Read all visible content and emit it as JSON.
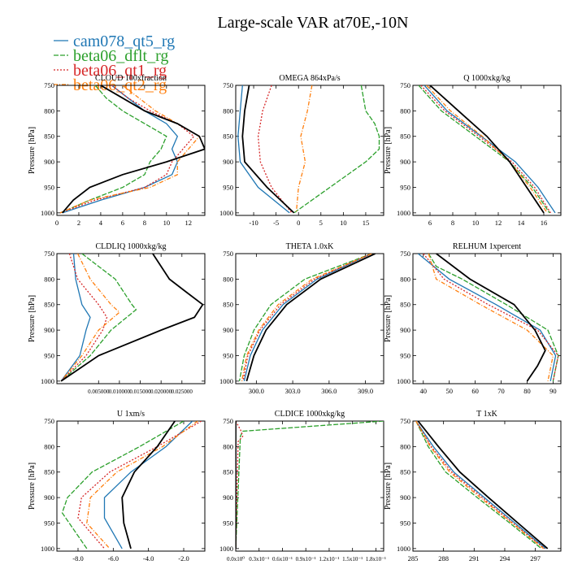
{
  "figure": {
    "title": "Large-scale VAR at70E,-10N",
    "legend": [
      {
        "name": "cam078_qt5_rg",
        "color": "#1f77b4"
      },
      {
        "name": "beta06_dflt_rg",
        "color": "#2ca02c"
      },
      {
        "name": "beta06_qt1_rg",
        "color": "#d62728"
      },
      {
        "name": "beta06_qt2_rg",
        "color": "#ff7f0e"
      },
      {
        "name": "",
        "color": "#000000"
      }
    ]
  },
  "chart_data": [
    {
      "type": "line",
      "title": "CLOUD 100xfraction",
      "ylabel": "Pressure [hPa]",
      "xlim": [
        0,
        13.5
      ],
      "ylim": [
        1005,
        750
      ],
      "xticks": [
        0,
        2,
        4,
        6,
        8,
        10,
        12
      ],
      "xticklabels": [
        "0",
        "2",
        "4",
        "6",
        "8",
        "10",
        "12"
      ],
      "yticks": [
        750,
        800,
        850,
        900,
        950,
        1000
      ],
      "yticklabels": [
        "750",
        "800",
        "850",
        "900",
        "950",
        "1000"
      ],
      "series": [
        {
          "p": [
            750,
            775,
            800,
            825,
            850,
            875,
            900,
            925,
            950,
            975,
            1000
          ],
          "x": [
            5,
            6.5,
            8,
            10,
            11,
            10.5,
            11,
            10.5,
            8,
            4,
            0.5
          ]
        },
        {
          "p": [
            750,
            775,
            800,
            825,
            850,
            875,
            900,
            925,
            950,
            975,
            1000
          ],
          "x": [
            3.5,
            4.5,
            6,
            8,
            10,
            9.5,
            8.5,
            8,
            6,
            3,
            0.3
          ]
        },
        {
          "p": [
            750,
            775,
            800,
            825,
            850,
            875,
            900,
            925,
            950,
            975,
            1000
          ],
          "x": [
            5,
            6.5,
            8.5,
            11,
            12.5,
            11.5,
            10.5,
            10,
            8,
            3.5,
            0.3
          ]
        },
        {
          "p": [
            750,
            775,
            800,
            825,
            850,
            875,
            900,
            925,
            950,
            975,
            1000
          ],
          "x": [
            6,
            7.5,
            9,
            11,
            13,
            12,
            11,
            11,
            8.5,
            3,
            0.3
          ]
        },
        {
          "p": [
            750,
            775,
            800,
            825,
            850,
            875,
            900,
            925,
            950,
            975,
            1000
          ],
          "x": [
            4,
            6,
            8,
            11,
            13,
            13.5,
            10,
            6,
            3,
            1.5,
            0.5
          ]
        }
      ]
    },
    {
      "type": "line",
      "title": "OMEGA  864xPa/s",
      "ylabel": "",
      "xlim": [
        -14,
        19
      ],
      "ylim": [
        1005,
        750
      ],
      "xticks": [
        -10,
        -5,
        0,
        5,
        10,
        15
      ],
      "xticklabels": [
        "-10",
        "-5",
        "0",
        "5",
        "10",
        "15"
      ],
      "yticks": [
        750,
        800,
        850,
        900,
        950,
        1000
      ],
      "yticklabels": [
        "750",
        "800",
        "850",
        "900",
        "950",
        "1000"
      ],
      "series": [
        {
          "p": [
            750,
            800,
            850,
            900,
            950,
            1000
          ],
          "x": [
            -12.5,
            -13,
            -13.5,
            -13,
            -9,
            -2
          ]
        },
        {
          "p": [
            750,
            800,
            825,
            850,
            875,
            900,
            950,
            1000
          ],
          "x": [
            14,
            15,
            17,
            18,
            18,
            15,
            7,
            -1
          ]
        },
        {
          "p": [
            750,
            800,
            850,
            900,
            950,
            1000
          ],
          "x": [
            -6,
            -8,
            -9,
            -8.5,
            -6,
            -1.5
          ]
        },
        {
          "p": [
            750,
            800,
            850,
            900,
            950,
            1000
          ],
          "x": [
            3,
            2,
            0.5,
            1.5,
            0,
            -0.5
          ]
        },
        {
          "p": [
            750,
            800,
            850,
            900,
            950,
            1000
          ],
          "x": [
            -11,
            -12,
            -12.5,
            -12,
            -7,
            -1
          ]
        }
      ]
    },
    {
      "type": "line",
      "title": "Q  1000xkg/kg",
      "ylabel": "Pressure [hPa]",
      "xlim": [
        4.5,
        17.5
      ],
      "ylim": [
        1005,
        750
      ],
      "xticks": [
        6,
        8,
        10,
        12,
        14,
        16
      ],
      "xticklabels": [
        "6",
        "8",
        "10",
        "12",
        "14",
        "16"
      ],
      "yticks": [
        750,
        800,
        850,
        900,
        950,
        1000
      ],
      "yticklabels": [
        "750",
        "800",
        "850",
        "900",
        "950",
        "1000"
      ],
      "series": [
        {
          "p": [
            750,
            800,
            850,
            900,
            950,
            1000
          ],
          "x": [
            5.5,
            7.5,
            10.5,
            13.5,
            15.5,
            17
          ]
        },
        {
          "p": [
            750,
            800,
            850,
            900,
            950,
            1000
          ],
          "x": [
            5,
            7,
            10,
            13,
            15,
            16.5
          ]
        },
        {
          "p": [
            750,
            800,
            850,
            900,
            950,
            1000
          ],
          "x": [
            5.2,
            7.3,
            10.3,
            13.2,
            15.2,
            16.6
          ]
        },
        {
          "p": [
            750,
            800,
            850,
            900,
            950,
            1000
          ],
          "x": [
            5.7,
            7.8,
            10.6,
            13,
            14.8,
            16.3
          ]
        },
        {
          "p": [
            750,
            800,
            850,
            900,
            950,
            1000
          ],
          "x": [
            6,
            8.5,
            11,
            13,
            14.5,
            16
          ]
        }
      ]
    },
    {
      "type": "line",
      "title": "CLDLIQ  1000xkg/kg",
      "ylabel": "Pressure [hPa]",
      "xlim": [
        -0.005,
        0.0305
      ],
      "ylim": [
        1005,
        750
      ],
      "xticks": [
        0.005,
        0.01,
        0.015,
        0.02,
        0.025
      ],
      "xticklabels": [
        "0.005000",
        "0.010000",
        "0.015000",
        "0.020000",
        "0.025000"
      ],
      "yticks": [
        750,
        800,
        850,
        900,
        950,
        1000
      ],
      "yticklabels": [
        "750",
        "800",
        "850",
        "900",
        "950",
        "1000"
      ],
      "series": [
        {
          "p": [
            750,
            800,
            850,
            875,
            900,
            950,
            1000
          ],
          "x": [
            -0.001,
            -0.0005,
            0.001,
            0.003,
            0.002,
            0.0005,
            -0.004
          ]
        },
        {
          "p": [
            750,
            800,
            850,
            860,
            900,
            950,
            1000
          ],
          "x": [
            0.001,
            0.009,
            0.013,
            0.014,
            0.008,
            0.003,
            -0.004
          ]
        },
        {
          "p": [
            750,
            800,
            850,
            875,
            900,
            950,
            1000
          ],
          "x": [
            -0.002,
            0.0,
            0.005,
            0.007,
            0.006,
            0.002,
            -0.004
          ]
        },
        {
          "p": [
            750,
            800,
            850,
            865,
            900,
            950,
            1000
          ],
          "x": [
            0.0,
            0.003,
            0.008,
            0.01,
            0.005,
            0.001,
            -0.004
          ]
        },
        {
          "p": [
            750,
            800,
            825,
            850,
            875,
            900,
            950,
            1000
          ],
          "x": [
            0.018,
            0.022,
            0.026,
            0.03,
            0.028,
            0.02,
            0.005,
            -0.004
          ]
        }
      ]
    },
    {
      "type": "line",
      "title": "THETA  1.0xK",
      "ylabel": "",
      "xlim": [
        298.3,
        310.5
      ],
      "ylim": [
        1005,
        750
      ],
      "xticks": [
        300,
        303,
        306,
        309
      ],
      "xticklabels": [
        "300.0",
        "303.0",
        "306.0",
        "309.0"
      ],
      "yticks": [
        750,
        800,
        850,
        900,
        950,
        1000
      ],
      "yticklabels": [
        "750",
        "800",
        "850",
        "900",
        "950",
        "1000"
      ],
      "series": [
        {
          "p": [
            750,
            800,
            850,
            900,
            950,
            1000
          ],
          "x": [
            309.5,
            305,
            302.2,
            300.5,
            299.5,
            299
          ]
        },
        {
          "p": [
            750,
            800,
            850,
            900,
            950,
            1000
          ],
          "x": [
            309.5,
            304,
            301.2,
            299.8,
            299,
            298.6
          ]
        },
        {
          "p": [
            750,
            800,
            850,
            900,
            950,
            1000
          ],
          "x": [
            309.5,
            304.8,
            302,
            300.3,
            299.3,
            298.9
          ]
        },
        {
          "p": [
            750,
            800,
            850,
            900,
            950,
            1000
          ],
          "x": [
            309.5,
            304.6,
            301.8,
            300.2,
            299.2,
            298.8
          ]
        },
        {
          "p": [
            750,
            800,
            850,
            900,
            950,
            1000
          ],
          "x": [
            309.8,
            305.3,
            302.5,
            300.8,
            299.8,
            299.2
          ]
        }
      ]
    },
    {
      "type": "line",
      "title": "RELHUM  1xpercent",
      "ylabel": "Pressure [hPa]",
      "xlim": [
        36,
        93
      ],
      "ylim": [
        1005,
        750
      ],
      "xticks": [
        40,
        50,
        60,
        70,
        80,
        90
      ],
      "xticklabels": [
        "40",
        "50",
        "60",
        "70",
        "80",
        "90"
      ],
      "yticks": [
        750,
        800,
        850,
        900,
        950,
        1000
      ],
      "yticklabels": [
        "750",
        "800",
        "850",
        "900",
        "950",
        "1000"
      ],
      "series": [
        {
          "p": [
            750,
            800,
            850,
            900,
            950,
            1000
          ],
          "x": [
            38,
            50,
            68,
            85,
            91,
            89
          ]
        },
        {
          "p": [
            750,
            775,
            800,
            850,
            900,
            950,
            1000
          ],
          "x": [
            42,
            45,
            55,
            72,
            88,
            92,
            90
          ]
        },
        {
          "p": [
            750,
            800,
            850,
            900,
            950,
            1000
          ],
          "x": [
            40,
            48,
            65,
            84,
            92,
            90
          ]
        },
        {
          "p": [
            750,
            800,
            850,
            900,
            950,
            1000
          ],
          "x": [
            42,
            45,
            62,
            80,
            90,
            88
          ]
        },
        {
          "p": [
            750,
            800,
            850,
            900,
            940,
            970,
            1000
          ],
          "x": [
            45,
            58,
            75,
            83,
            87,
            84,
            80
          ]
        }
      ]
    },
    {
      "type": "line",
      "title": "U  1xm/s",
      "ylabel": "Pressure [hPa]",
      "xlim": [
        -9.2,
        -0.8
      ],
      "ylim": [
        1005,
        750
      ],
      "xticks": [
        -8,
        -6,
        -4,
        -2
      ],
      "xticklabels": [
        "-8.0",
        "-6.0",
        "-4.0",
        "-2.0"
      ],
      "yticks": [
        750,
        800,
        850,
        900,
        950,
        1000
      ],
      "yticklabels": [
        "750",
        "800",
        "850",
        "900",
        "950",
        "1000"
      ],
      "series": [
        {
          "p": [
            750,
            800,
            850,
            900,
            940,
            1000
          ],
          "x": [
            -1.5,
            -3,
            -5,
            -6.5,
            -6.5,
            -5.5
          ]
        },
        {
          "p": [
            750,
            800,
            850,
            900,
            930,
            1000
          ],
          "x": [
            -2,
            -4.5,
            -7.2,
            -8.6,
            -8.9,
            -7.5
          ]
        },
        {
          "p": [
            750,
            800,
            850,
            900,
            940,
            1000
          ],
          "x": [
            -1,
            -3.5,
            -6.2,
            -7.8,
            -8,
            -6.5
          ]
        },
        {
          "p": [
            750,
            800,
            850,
            900,
            950,
            1000
          ],
          "x": [
            -1.2,
            -3.2,
            -5.8,
            -7.3,
            -7.5,
            -6.2
          ]
        },
        {
          "p": [
            750,
            800,
            850,
            900,
            950,
            1000
          ],
          "x": [
            -2.5,
            -3.5,
            -4.8,
            -5.5,
            -5.4,
            -5
          ]
        }
      ]
    },
    {
      "type": "line",
      "title": "CLDICE  1000xkg/kg",
      "ylabel": "",
      "xlim": [
        0,
        1.9e-11
      ],
      "ylim": [
        1005,
        750
      ],
      "xticks": [
        0,
        3e-12,
        6e-12,
        9e-12,
        1.2e-11,
        1.5e-11,
        1.8e-11
      ],
      "xticklabels": [
        "0.0x10⁰",
        "0.3x10⁻¹",
        "0.6x10⁻¹",
        "0.9x10⁻¹",
        "1.2x10⁻¹",
        "1.5x10⁻¹",
        "1.8x10⁻¹"
      ],
      "yticks": [
        750,
        800,
        850,
        900,
        950,
        1000
      ],
      "yticklabels": [
        "750",
        "800",
        "850",
        "900",
        "950",
        "1000"
      ],
      "series": [
        {
          "p": [
            750,
            1000
          ],
          "x": [
            0,
            0
          ]
        },
        {
          "p": [
            750,
            770,
            780,
            1000
          ],
          "x": [
            1.9e-11,
            9e-13,
            6e-13,
            0
          ]
        },
        {
          "p": [
            750,
            770,
            780,
            790,
            1000
          ],
          "x": [
            0,
            7e-13,
            9e-13,
            3e-13,
            0
          ]
        },
        {
          "p": [
            750,
            1000
          ],
          "x": [
            0,
            0
          ]
        },
        {
          "p": [
            750,
            1000
          ],
          "x": [
            0,
            0
          ]
        }
      ]
    },
    {
      "type": "line",
      "title": "T  1xK",
      "ylabel": "Pressure [hPa]",
      "xlim": [
        285,
        299.5
      ],
      "ylim": [
        1005,
        750
      ],
      "xticks": [
        285,
        288,
        291,
        294,
        297
      ],
      "xticklabels": [
        "285",
        "288",
        "291",
        "294",
        "297"
      ],
      "yticks": [
        750,
        800,
        850,
        900,
        950,
        1000
      ],
      "yticklabels": [
        "750",
        "800",
        "850",
        "900",
        "950",
        "1000"
      ],
      "series": [
        {
          "p": [
            750,
            800,
            850,
            900,
            950,
            1000
          ],
          "x": [
            285.3,
            287,
            289,
            292,
            295,
            298
          ]
        },
        {
          "p": [
            750,
            800,
            850,
            900,
            950,
            1000
          ],
          "x": [
            285.3,
            286.5,
            288.2,
            291.3,
            294.5,
            297.6
          ]
        },
        {
          "p": [
            750,
            800,
            850,
            900,
            950,
            1000
          ],
          "x": [
            285.3,
            286.8,
            288.8,
            291.8,
            294.8,
            297.9
          ]
        },
        {
          "p": [
            750,
            800,
            850,
            900,
            950,
            1000
          ],
          "x": [
            285.3,
            286.7,
            288.6,
            291.6,
            294.7,
            297.8
          ]
        },
        {
          "p": [
            750,
            800,
            850,
            900,
            950,
            1000
          ],
          "x": [
            285.5,
            287.5,
            289.6,
            292.4,
            295.3,
            298.2
          ]
        }
      ]
    }
  ]
}
